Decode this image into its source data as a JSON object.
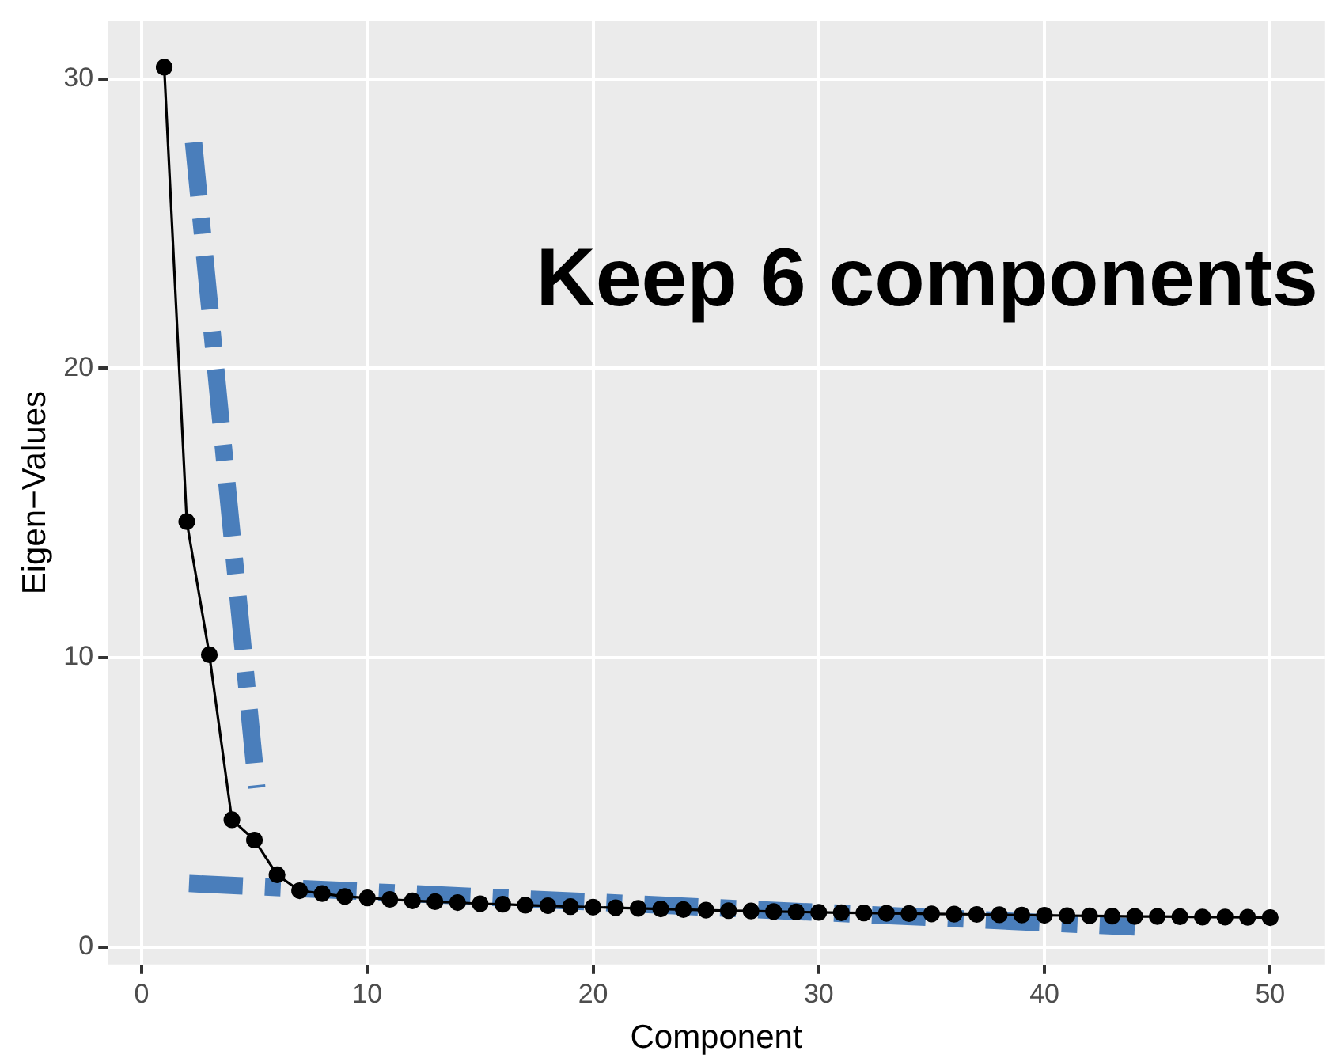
{
  "chart_data": {
    "type": "line",
    "xlabel": "Component",
    "ylabel": "Eigen−Values",
    "annotations": [
      "Keep 6 components"
    ],
    "x": [
      1,
      2,
      3,
      4,
      5,
      6,
      7,
      8,
      9,
      10,
      11,
      12,
      13,
      14,
      15,
      16,
      17,
      18,
      19,
      20,
      21,
      22,
      23,
      24,
      25,
      26,
      27,
      28,
      29,
      30,
      31,
      32,
      33,
      34,
      35,
      36,
      37,
      38,
      39,
      40,
      41,
      42,
      43,
      44,
      45,
      46,
      47,
      48,
      49,
      50
    ],
    "series": [
      {
        "color": "#000000",
        "marker": "circle",
        "line_style": "solid",
        "values": [
          30.4,
          14.7,
          10.1,
          4.4,
          3.7,
          2.5,
          1.95,
          1.85,
          1.75,
          1.7,
          1.65,
          1.6,
          1.57,
          1.54,
          1.5,
          1.48,
          1.45,
          1.43,
          1.4,
          1.38,
          1.36,
          1.34,
          1.32,
          1.3,
          1.28,
          1.26,
          1.25,
          1.23,
          1.22,
          1.2,
          1.19,
          1.18,
          1.17,
          1.16,
          1.15,
          1.14,
          1.13,
          1.12,
          1.11,
          1.1,
          1.09,
          1.08,
          1.07,
          1.06,
          1.06,
          1.05,
          1.04,
          1.04,
          1.03,
          1.02
        ]
      },
      {
        "type": "line",
        "color": "#4a7ebb",
        "marker": "none",
        "line_style": "dashed",
        "x": [
          2.3,
          5.1
        ],
        "values": [
          27.8,
          5.5
        ]
      },
      {
        "type": "line",
        "color": "#4a7ebb",
        "marker": "none",
        "line_style": "dashed",
        "x": [
          2.1,
          44
        ],
        "values": [
          2.2,
          0.7
        ]
      }
    ],
    "xlim": [
      -1.5,
      52.4
    ],
    "xticks": [
      0,
      10,
      20,
      30,
      40,
      50
    ],
    "ylim": [
      -0.6,
      32
    ],
    "yticks": [
      0,
      10,
      20,
      30
    ],
    "grid": true,
    "legend": false
  }
}
